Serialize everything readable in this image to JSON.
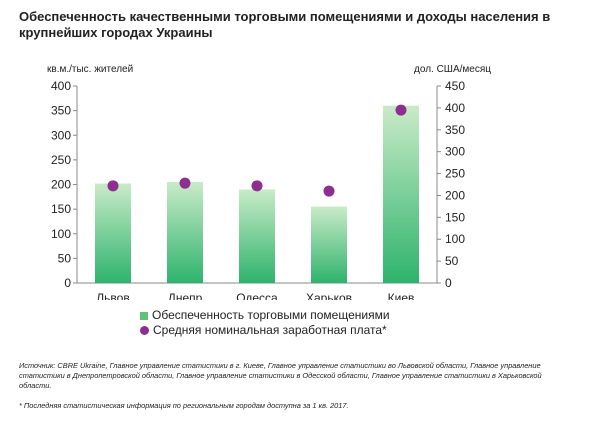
{
  "title": "Обеспеченность качественными торговыми помещениями и доходы населения в крупнейших городах Украины",
  "source": "Источник: CBRE Ukraine, Главное управление статистики в г. Киеве, Главное управление статистики во Львовской области, Главное управление статистики в Днепропетровской области, Главное управление статистики в Одесской области, Главное управление статистики в Харьковской области.",
  "footnote": "* Последняя статистическая информация по региональным городам доступна за 1 кв. 2017.",
  "chart_data": {
    "type": "bar",
    "categories": [
      "Львов",
      "Днепр",
      "Одесса",
      "Харьков",
      "Киев"
    ],
    "series": [
      {
        "name": "Обеспеченность торговыми помещениями",
        "type": "bar",
        "axis": "left",
        "values": [
          202,
          205,
          190,
          155,
          360
        ],
        "color": "#5fc17a"
      },
      {
        "name": "Средняя номинальная заработная плата*",
        "type": "scatter",
        "axis": "right",
        "values": [
          222,
          228,
          222,
          210,
          395
        ],
        "color": "#8c2f8f"
      }
    ],
    "ylabel_left": "кв.м./тыс. жителей",
    "ylabel_right": "дол. США/месяц",
    "ylim_left": [
      0,
      400
    ],
    "yticks_left": [
      0,
      50,
      100,
      150,
      200,
      250,
      300,
      350,
      400
    ],
    "ylim_right": [
      0,
      450
    ],
    "yticks_right": [
      0,
      50,
      100,
      150,
      200,
      250,
      300,
      350,
      400,
      450
    ],
    "grid": false,
    "legend_position": "bottom"
  }
}
